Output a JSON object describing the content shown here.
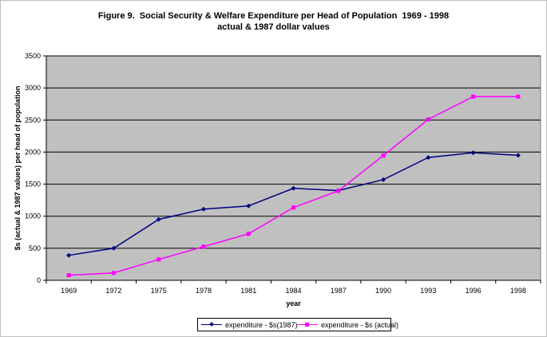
{
  "chart_data": {
    "type": "line",
    "title": "Figure 9.  Social Security & Welfare Expenditure per Head of Population  1969 - 1998",
    "subtitle": "actual & 1987 dollar values",
    "xlabel": "year",
    "ylabel": "$s (actual & 1987 values) per head of population",
    "categories": [
      "1969",
      "1972",
      "1975",
      "1978",
      "1981",
      "1984",
      "1987",
      "1990",
      "1993",
      "1996",
      "1998"
    ],
    "ylim": [
      0,
      3500
    ],
    "yticks": [
      0,
      500,
      1000,
      1500,
      2000,
      2500,
      3000,
      3500
    ],
    "grid": true,
    "legend_position": "bottom",
    "plot_background": "#c0c0c0",
    "series": [
      {
        "name": "expenditure - $s(1987)",
        "color": "#000080",
        "marker": "diamond",
        "values": [
          390,
          500,
          950,
          1110,
          1160,
          1435,
          1400,
          1570,
          1915,
          1990,
          1950
        ]
      },
      {
        "name": "expenditure - $s (actual)",
        "color": "#ff00ff",
        "marker": "square",
        "values": [
          80,
          115,
          325,
          525,
          725,
          1135,
          1395,
          1945,
          2510,
          2865,
          2865
        ]
      }
    ]
  }
}
